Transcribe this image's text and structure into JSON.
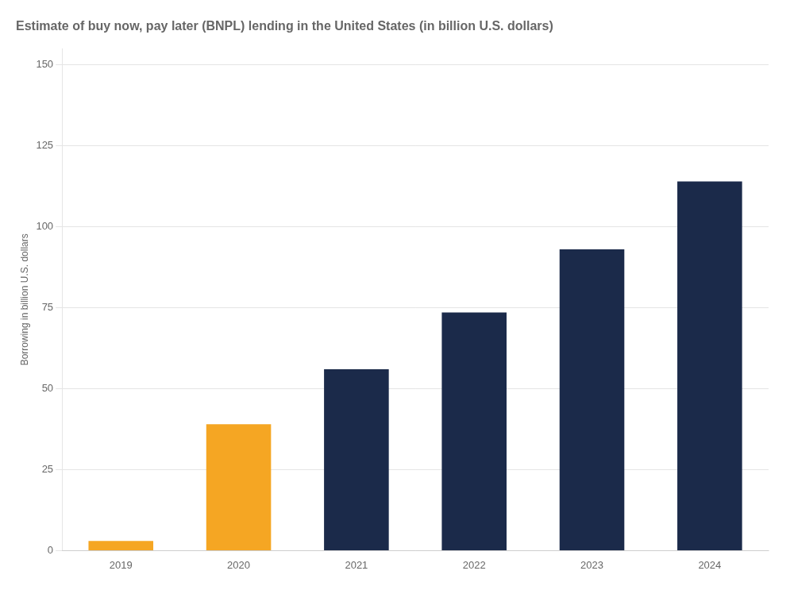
{
  "chart_data": {
    "type": "bar",
    "title": "Estimate of buy now, pay later (BNPL) lending in the United States (in billion U.S. dollars)",
    "ylabel": "Borrowing in billion U.S. dollars",
    "categories": [
      "2019",
      "2020",
      "2021",
      "2022",
      "2023",
      "2024"
    ],
    "values": [
      3.0,
      39.0,
      56.0,
      73.5,
      93.0,
      114.0
    ],
    "colors": [
      "#F5A623",
      "#F5A623",
      "#1B2A4A",
      "#1B2A4A",
      "#1B2A4A",
      "#1B2A4A"
    ],
    "ylim": [
      0,
      155
    ],
    "yticks": [
      0,
      25,
      50,
      75,
      100,
      125,
      150
    ],
    "grid": true
  }
}
